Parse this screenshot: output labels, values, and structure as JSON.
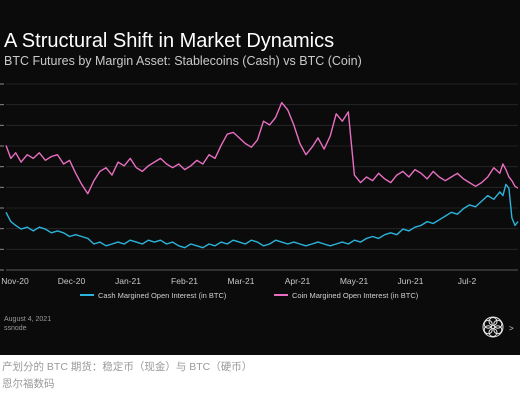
{
  "chart_data": {
    "type": "line",
    "title": "A Structural Shift in Market Dynamics",
    "subtitle": "BTC Futures by Margin Asset: Stablecoins (Cash) vs BTC (Coin)",
    "x_tick_labels": [
      "Nov-20",
      "Dec-20",
      "Jan-21",
      "Feb-21",
      "Mar-21",
      "Apr-21",
      "May-21",
      "Jun-21",
      "Jul-2"
    ],
    "x_range": [
      0,
      8.45
    ],
    "y_range": [
      0,
      1
    ],
    "grid": true,
    "legend_position": "bottom",
    "series": [
      {
        "name": "Cash Margined Open Interest (in BTC)",
        "color": "#2bb3d9",
        "x": [
          0,
          0.08,
          0.16,
          0.25,
          0.35,
          0.45,
          0.55,
          0.65,
          0.75,
          0.85,
          0.95,
          1.05,
          1.15,
          1.25,
          1.35,
          1.45,
          1.55,
          1.65,
          1.75,
          1.85,
          1.95,
          2.05,
          2.15,
          2.25,
          2.35,
          2.45,
          2.55,
          2.65,
          2.75,
          2.85,
          2.95,
          3.05,
          3.15,
          3.25,
          3.35,
          3.45,
          3.55,
          3.65,
          3.75,
          3.85,
          3.95,
          4.05,
          4.15,
          4.25,
          4.35,
          4.45,
          4.55,
          4.65,
          4.75,
          4.85,
          4.95,
          5.05,
          5.15,
          5.25,
          5.35,
          5.45,
          5.55,
          5.65,
          5.75,
          5.85,
          5.95,
          6.05,
          6.15,
          6.25,
          6.35,
          6.45,
          6.55,
          6.65,
          6.75,
          6.85,
          6.95,
          7.05,
          7.15,
          7.25,
          7.35,
          7.45,
          7.55,
          7.65,
          7.75,
          7.85,
          7.95,
          8.05,
          8.15,
          8.2,
          8.25,
          8.3,
          8.35,
          8.4,
          8.45
        ],
        "y": [
          0.31,
          0.26,
          0.24,
          0.22,
          0.23,
          0.21,
          0.23,
          0.22,
          0.2,
          0.21,
          0.2,
          0.18,
          0.19,
          0.18,
          0.17,
          0.14,
          0.15,
          0.13,
          0.14,
          0.15,
          0.14,
          0.16,
          0.15,
          0.14,
          0.16,
          0.15,
          0.16,
          0.14,
          0.15,
          0.13,
          0.12,
          0.14,
          0.13,
          0.12,
          0.14,
          0.13,
          0.15,
          0.14,
          0.16,
          0.15,
          0.14,
          0.16,
          0.15,
          0.13,
          0.14,
          0.16,
          0.15,
          0.14,
          0.15,
          0.14,
          0.13,
          0.14,
          0.15,
          0.14,
          0.13,
          0.14,
          0.15,
          0.14,
          0.16,
          0.15,
          0.17,
          0.18,
          0.17,
          0.19,
          0.2,
          0.19,
          0.22,
          0.21,
          0.23,
          0.24,
          0.26,
          0.25,
          0.27,
          0.29,
          0.31,
          0.3,
          0.33,
          0.35,
          0.34,
          0.37,
          0.4,
          0.38,
          0.42,
          0.4,
          0.46,
          0.44,
          0.28,
          0.24,
          0.26
        ]
      },
      {
        "name": "Coin Margined Open Interest (in BTC)",
        "color": "#e86ec0",
        "x": [
          0,
          0.08,
          0.16,
          0.25,
          0.35,
          0.45,
          0.55,
          0.65,
          0.75,
          0.85,
          0.95,
          1.05,
          1.15,
          1.25,
          1.35,
          1.45,
          1.55,
          1.65,
          1.75,
          1.85,
          1.95,
          2.05,
          2.15,
          2.25,
          2.35,
          2.45,
          2.55,
          2.65,
          2.75,
          2.85,
          2.95,
          3.05,
          3.15,
          3.25,
          3.35,
          3.45,
          3.55,
          3.65,
          3.75,
          3.85,
          3.95,
          4.05,
          4.15,
          4.25,
          4.35,
          4.45,
          4.55,
          4.65,
          4.75,
          4.85,
          4.95,
          5.05,
          5.15,
          5.25,
          5.35,
          5.45,
          5.55,
          5.65,
          5.75,
          5.85,
          5.95,
          6.05,
          6.15,
          6.25,
          6.35,
          6.45,
          6.55,
          6.65,
          6.75,
          6.85,
          6.95,
          7.05,
          7.15,
          7.25,
          7.35,
          7.45,
          7.55,
          7.65,
          7.75,
          7.85,
          7.95,
          8.05,
          8.15,
          8.2,
          8.25,
          8.3,
          8.35,
          8.4,
          8.45
        ],
        "y": [
          0.67,
          0.6,
          0.63,
          0.58,
          0.62,
          0.6,
          0.63,
          0.59,
          0.61,
          0.62,
          0.57,
          0.59,
          0.52,
          0.46,
          0.41,
          0.48,
          0.53,
          0.55,
          0.51,
          0.58,
          0.56,
          0.6,
          0.55,
          0.53,
          0.56,
          0.58,
          0.6,
          0.57,
          0.55,
          0.57,
          0.54,
          0.56,
          0.59,
          0.57,
          0.62,
          0.6,
          0.67,
          0.73,
          0.74,
          0.71,
          0.68,
          0.66,
          0.7,
          0.8,
          0.78,
          0.82,
          0.9,
          0.86,
          0.78,
          0.68,
          0.62,
          0.66,
          0.71,
          0.65,
          0.72,
          0.84,
          0.8,
          0.85,
          0.51,
          0.47,
          0.5,
          0.48,
          0.52,
          0.49,
          0.47,
          0.51,
          0.53,
          0.5,
          0.54,
          0.52,
          0.49,
          0.53,
          0.5,
          0.48,
          0.5,
          0.52,
          0.49,
          0.47,
          0.45,
          0.47,
          0.5,
          0.55,
          0.52,
          0.57,
          0.54,
          0.5,
          0.48,
          0.45,
          0.44
        ]
      }
    ]
  },
  "footer": {
    "date": "August 4, 2021",
    "source": "ssnode",
    "logo_text": ">"
  },
  "captions": {
    "line1": "产划分的 BTC 期货：稳定币（现金）与 BTC（硬币）",
    "line2": "恩尔福数码"
  },
  "colors": {
    "background": "#0b0b0c",
    "grid": "#2a2a2a"
  }
}
